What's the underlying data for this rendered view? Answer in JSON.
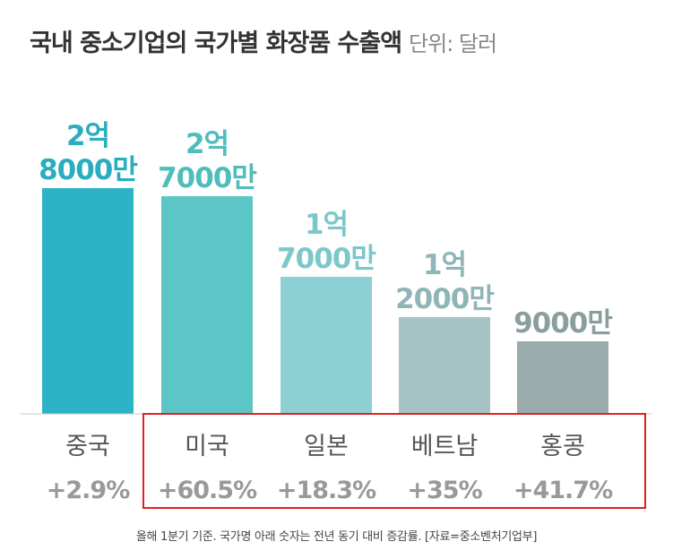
{
  "title": "국내 중소기업의 국가별 화장품 수출액",
  "unit": "단위: 달러",
  "caption": "올해 1분기 기준. 국가명 아래 숫자는 전년 동기 대비 증감률. [자료=중소벤처기업부]",
  "chart_data": {
    "type": "bar",
    "title": "국내 중소기업의 국가별 화장품 수출액",
    "ylabel": "달러",
    "ylim": [
      0,
      280000000
    ],
    "categories": [
      "중국",
      "미국",
      "일본",
      "베트남",
      "홍콩"
    ],
    "values": [
      280000000,
      270000000,
      170000000,
      120000000,
      90000000
    ],
    "value_labels": [
      [
        "2억",
        "8000만"
      ],
      [
        "2억",
        "7000만"
      ],
      [
        "1억",
        "7000만"
      ],
      [
        "1억",
        "2000만"
      ],
      [
        "9000만"
      ]
    ],
    "growth_labels": [
      "+2.9%",
      "+60.5%",
      "+18.3%",
      "+35%",
      "+41.7%"
    ],
    "bar_colors": [
      "#2db3c6",
      "#5cc5c6",
      "#8dcfd2",
      "#a6c3c4",
      "#9aacac"
    ],
    "label_colors": [
      "#2aaebf",
      "#4fbdbb",
      "#7cc7c9",
      "#8fb5b6",
      "#8a9e9e"
    ],
    "highlight": {
      "from_index": 1,
      "to_index": 4,
      "color": "#e02020"
    }
  }
}
